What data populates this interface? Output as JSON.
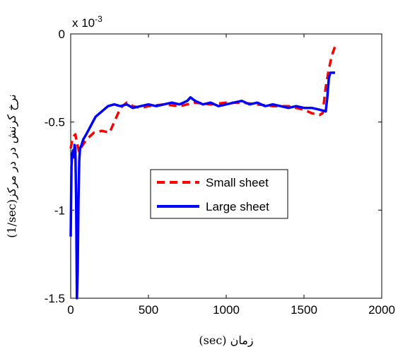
{
  "chart_data": {
    "type": "line",
    "title": "",
    "xlabel": "(sec) زمان",
    "ylabel": "(1/sec)نرخ کرنش در در مرکز",
    "xlim": [
      0,
      2000
    ],
    "ylim": [
      -1.5,
      0
    ],
    "exponent_label": "x 10",
    "exponent_power": "-3",
    "x_ticks": [
      0,
      500,
      1000,
      1500,
      2000
    ],
    "x_tick_labels": [
      "0",
      "500",
      "1000",
      "1500",
      "2000"
    ],
    "y_ticks": [
      0,
      -0.5,
      -1,
      -1.5
    ],
    "y_tick_labels": [
      "0",
      "-0.5",
      "-1",
      "-1.5"
    ],
    "grid": false,
    "legend_position": "center",
    "series": [
      {
        "name": "Small sheet",
        "color": "#ff0000",
        "style": "dashed",
        "x": [
          0,
          10,
          20,
          30,
          40,
          55,
          70,
          100,
          150,
          200,
          250,
          280,
          320,
          360,
          400,
          450,
          500,
          600,
          700,
          800,
          900,
          1000,
          1100,
          1200,
          1300,
          1400,
          1500,
          1550,
          1600,
          1620,
          1640,
          1660,
          1680,
          1700
        ],
        "y": [
          -0.65,
          -0.6,
          -0.58,
          -0.57,
          -0.62,
          -0.67,
          -0.64,
          -0.6,
          -0.56,
          -0.55,
          -0.56,
          -0.5,
          -0.42,
          -0.39,
          -0.41,
          -0.42,
          -0.41,
          -0.4,
          -0.41,
          -0.39,
          -0.4,
          -0.39,
          -0.39,
          -0.4,
          -0.41,
          -0.41,
          -0.43,
          -0.45,
          -0.46,
          -0.45,
          -0.3,
          -0.2,
          -0.12,
          -0.07
        ]
      },
      {
        "name": "Large sheet",
        "color": "#0000ff",
        "style": "solid",
        "x": [
          0,
          5,
          10,
          15,
          20,
          25,
          30,
          35,
          40,
          45,
          50,
          55,
          60,
          70,
          80,
          100,
          130,
          160,
          200,
          240,
          280,
          320,
          360,
          400,
          450,
          500,
          550,
          600,
          650,
          700,
          750,
          770,
          800,
          850,
          900,
          950,
          1000,
          1050,
          1100,
          1150,
          1200,
          1250,
          1300,
          1350,
          1400,
          1450,
          1500,
          1550,
          1600,
          1640,
          1650,
          1660,
          1670,
          1680,
          1700
        ],
        "y": [
          -1.15,
          -0.75,
          -0.68,
          -0.66,
          -0.7,
          -0.63,
          -0.65,
          -0.95,
          -1.5,
          -1.35,
          -0.95,
          -0.72,
          -0.65,
          -0.63,
          -0.6,
          -0.57,
          -0.52,
          -0.47,
          -0.44,
          -0.41,
          -0.4,
          -0.41,
          -0.4,
          -0.42,
          -0.41,
          -0.4,
          -0.41,
          -0.4,
          -0.39,
          -0.4,
          -0.38,
          -0.36,
          -0.38,
          -0.4,
          -0.39,
          -0.41,
          -0.4,
          -0.39,
          -0.38,
          -0.4,
          -0.39,
          -0.41,
          -0.4,
          -0.41,
          -0.42,
          -0.41,
          -0.42,
          -0.42,
          -0.43,
          -0.44,
          -0.36,
          -0.25,
          -0.22,
          -0.22,
          -0.22
        ]
      }
    ]
  }
}
